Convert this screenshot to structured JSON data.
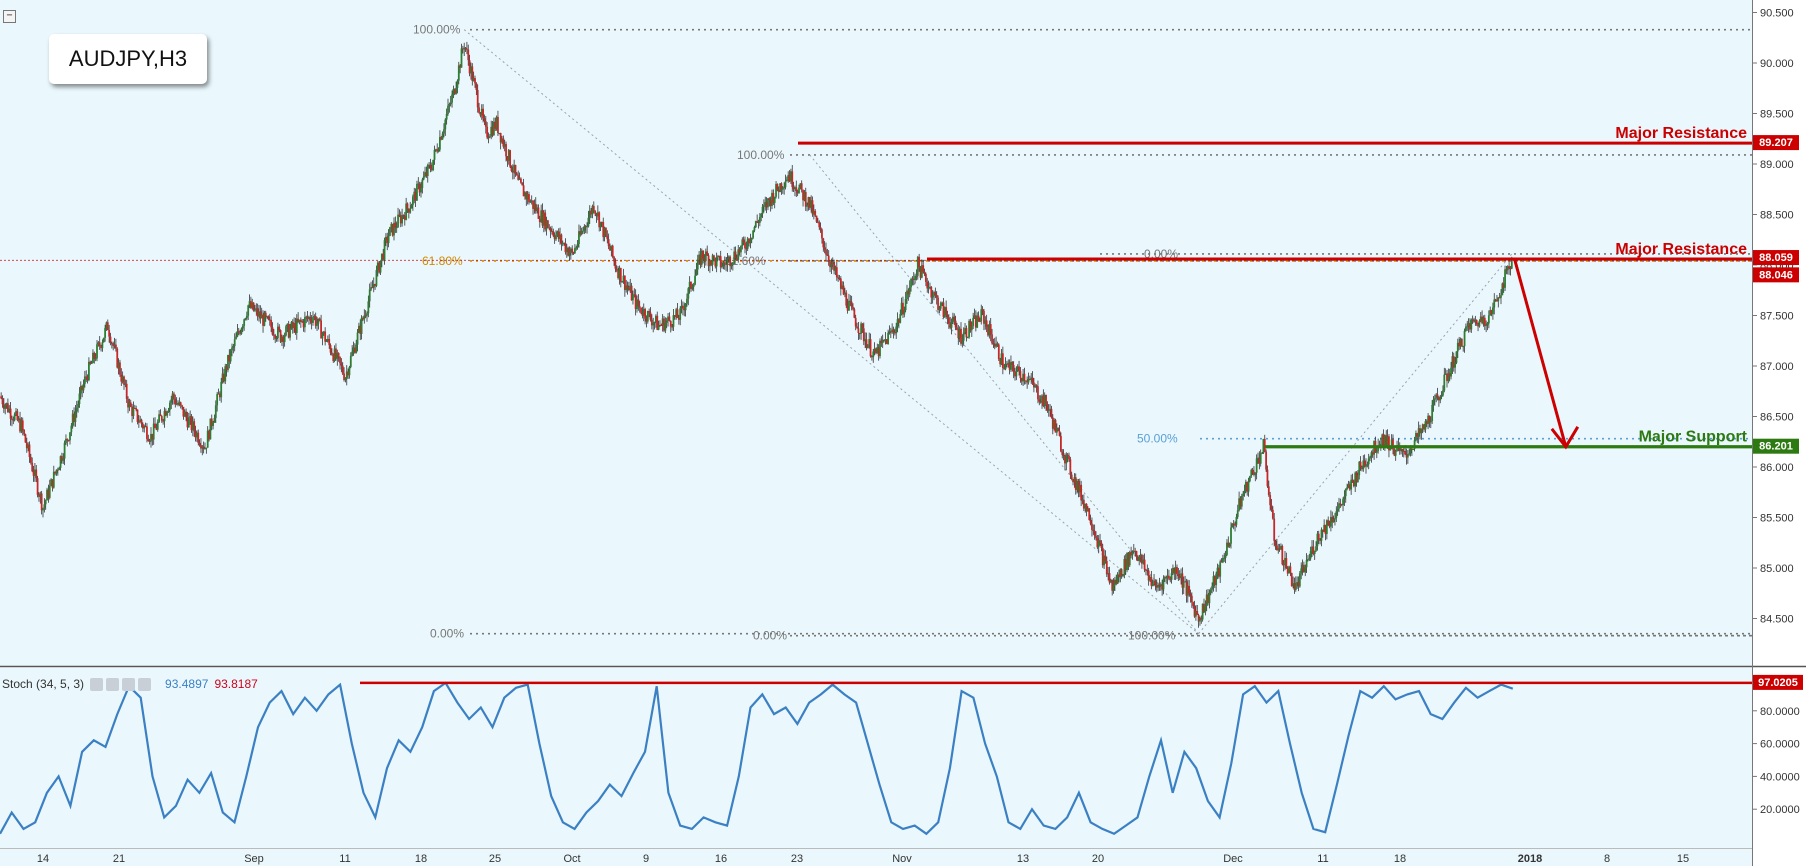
{
  "symbol": "AUDJPY,H3",
  "colors": {
    "background": "#eaf8fd",
    "bull": "#2e7d32",
    "bear": "#c62828",
    "resistance": "#cc0000",
    "support": "#2e7a12",
    "stoch": "#3c80c4"
  },
  "stoch_label": "Stoch (34, 5, 3)",
  "stoch_values": {
    "k": "93.4897",
    "d": "93.8187"
  },
  "annotations": [
    {
      "text": "Major Resistance",
      "price": 89.207,
      "color": "#cc0000"
    },
    {
      "text": "Major Resistance",
      "price": 88.059,
      "color": "#cc0000"
    },
    {
      "text": "Major Support",
      "price": 86.201,
      "color": "#2e7a12"
    }
  ],
  "price_tags": [
    {
      "text": "89.207",
      "color": "#cc0000"
    },
    {
      "text": "88.059",
      "color": "#cc0000"
    },
    {
      "text": "88.046",
      "color": "#cc0000"
    },
    {
      "text": "86.201",
      "color": "#2e7a12"
    }
  ],
  "stoch_tag": {
    "text": "97.0205",
    "color": "#cc0000"
  },
  "fib_labels": [
    {
      "text": "100.00%",
      "color": "#777777"
    },
    {
      "text": "0.00%",
      "color": "#777777"
    },
    {
      "text": "61.80%",
      "color": "#d08a00"
    },
    {
      "text": "100.00%",
      "color": "#777777"
    },
    {
      "text": "61.60%",
      "color": "#777777"
    },
    {
      "text": "0.00%",
      "color": "#777777"
    },
    {
      "text": "0.00%",
      "color": "#777777"
    },
    {
      "text": "50.00%",
      "color": "#5aa0d8"
    },
    {
      "text": "100.00%",
      "color": "#777777"
    }
  ],
  "chart_data": [
    {
      "type": "candlestick",
      "title": "AUDJPY,H3",
      "ylim": [
        84.2,
        90.6
      ],
      "y_ticks": [
        "84.500",
        "85.000",
        "85.500",
        "86.000",
        "86.500",
        "87.000",
        "87.500",
        "88.000",
        "88.500",
        "89.000",
        "89.500",
        "90.000",
        "90.500"
      ],
      "x_ticks": [
        "14",
        "21",
        "Sep",
        "11",
        "18",
        "25",
        "Oct",
        "9",
        "16",
        "23",
        "Nov",
        "13",
        "20",
        "Dec",
        "11",
        "18",
        "2018",
        "8",
        "15"
      ],
      "price_anchors": [
        [
          "Aug 10",
          86.7
        ],
        [
          "Aug 12",
          86.4
        ],
        [
          "Aug 14",
          85.6
        ],
        [
          "Aug 16",
          86.2
        ],
        [
          "Aug 18",
          86.9
        ],
        [
          "Aug 20",
          87.4
        ],
        [
          "Aug 22",
          86.6
        ],
        [
          "Aug 24",
          86.3
        ],
        [
          "Aug 26",
          86.7
        ],
        [
          "Aug 29",
          86.2
        ],
        [
          "Aug 31",
          87.0
        ],
        [
          "Sep 2",
          87.6
        ],
        [
          "Sep 5",
          87.3
        ],
        [
          "Sep 8",
          87.5
        ],
        [
          "Sep 11",
          86.9
        ],
        [
          "Sep 13",
          87.6
        ],
        [
          "Sep 15",
          88.3
        ],
        [
          "Sep 17",
          88.6
        ],
        [
          "Sep 19",
          89.0
        ],
        [
          "Sep 21",
          89.7
        ],
        [
          "Sep 22",
          90.2
        ],
        [
          "Sep 24",
          89.3
        ],
        [
          "Sep 25",
          89.4
        ],
        [
          "Sep 27",
          88.8
        ],
        [
          "Sep 29",
          88.5
        ],
        [
          "Oct 2",
          88.1
        ],
        [
          "Oct 4",
          88.6
        ],
        [
          "Oct 6",
          88.0
        ],
        [
          "Oct 8",
          87.6
        ],
        [
          "Oct 10",
          87.4
        ],
        [
          "Oct 12",
          87.5
        ],
        [
          "Oct 14",
          88.1
        ],
        [
          "Oct 16",
          88.0
        ],
        [
          "Oct 18",
          88.2
        ],
        [
          "Oct 20",
          88.6
        ],
        [
          "Oct 22",
          88.9
        ],
        [
          "Oct 24",
          88.6
        ],
        [
          "Oct 26",
          88.0
        ],
        [
          "Oct 28",
          87.5
        ],
        [
          "Oct 30",
          87.1
        ],
        [
          "Nov 1",
          87.4
        ],
        [
          "Nov 3",
          88.0
        ],
        [
          "Nov 5",
          87.6
        ],
        [
          "Nov 7",
          87.3
        ],
        [
          "Nov 9",
          87.5
        ],
        [
          "Nov 11",
          87.0
        ],
        [
          "Nov 13",
          86.9
        ],
        [
          "Nov 15",
          86.6
        ],
        [
          "Nov 17",
          86.0
        ],
        [
          "Nov 19",
          85.5
        ],
        [
          "Nov 21",
          84.8
        ],
        [
          "Nov 23",
          85.2
        ],
        [
          "Nov 25",
          84.8
        ],
        [
          "Nov 27",
          85.0
        ],
        [
          "Nov 29",
          84.5
        ],
        [
          "Dec 1",
          85.0
        ],
        [
          "Dec 3",
          85.7
        ],
        [
          "Dec 5",
          86.2
        ],
        [
          "Dec 6",
          85.3
        ],
        [
          "Dec 8",
          84.8
        ],
        [
          "Dec 10",
          85.3
        ],
        [
          "Dec 12",
          85.6
        ],
        [
          "Dec 14",
          86.0
        ],
        [
          "Dec 16",
          86.3
        ],
        [
          "Dec 18",
          86.1
        ],
        [
          "Dec 20",
          86.4
        ],
        [
          "Dec 22",
          86.9
        ],
        [
          "Dec 24",
          87.4
        ],
        [
          "Dec 26",
          87.5
        ],
        [
          "Dec 28",
          88.05
        ]
      ],
      "levels": [
        {
          "name": "Major Resistance",
          "value": 89.207
        },
        {
          "name": "Major Resistance",
          "value": 88.059
        },
        {
          "name": "Major Support",
          "value": 86.201
        },
        {
          "name": "current",
          "value": 88.046
        }
      ],
      "forecast_arrow": {
        "from": [
          "Dec 28",
          88.05
        ],
        "to": [
          "Jan 2",
          86.2
        ]
      }
    },
    {
      "type": "line",
      "title": "Stoch (34, 5, 3)",
      "ylim": [
        0,
        100
      ],
      "y_ticks": [
        "20.0000",
        "40.0000",
        "60.0000",
        "80.0000"
      ],
      "series": [
        {
          "name": "Stoch (34, 5, 3)",
          "values": [
            5,
            18,
            8,
            12,
            30,
            40,
            22,
            55,
            62,
            58,
            78,
            95,
            88,
            40,
            15,
            22,
            38,
            30,
            42,
            18,
            12,
            40,
            70,
            85,
            92,
            78,
            88,
            80,
            90,
            96,
            60,
            30,
            15,
            45,
            62,
            55,
            70,
            92,
            97,
            85,
            75,
            82,
            70,
            88,
            94,
            96,
            60,
            28,
            12,
            8,
            18,
            25,
            35,
            28,
            42,
            55,
            95,
            30,
            10,
            8,
            15,
            12,
            10,
            40,
            82,
            90,
            78,
            82,
            72,
            85,
            90,
            96,
            90,
            85,
            60,
            35,
            12,
            8,
            10,
            5,
            12,
            45,
            92,
            88,
            60,
            40,
            12,
            8,
            20,
            10,
            8,
            15,
            30,
            12,
            8,
            5,
            10,
            15,
            40,
            62,
            30,
            55,
            45,
            25,
            15,
            48,
            90,
            95,
            85,
            92,
            60,
            30,
            8,
            6,
            35,
            65,
            92,
            88,
            95,
            87,
            90,
            92,
            78,
            75,
            85,
            94,
            88,
            92,
            96,
            93.49
          ]
        }
      ]
    }
  ]
}
